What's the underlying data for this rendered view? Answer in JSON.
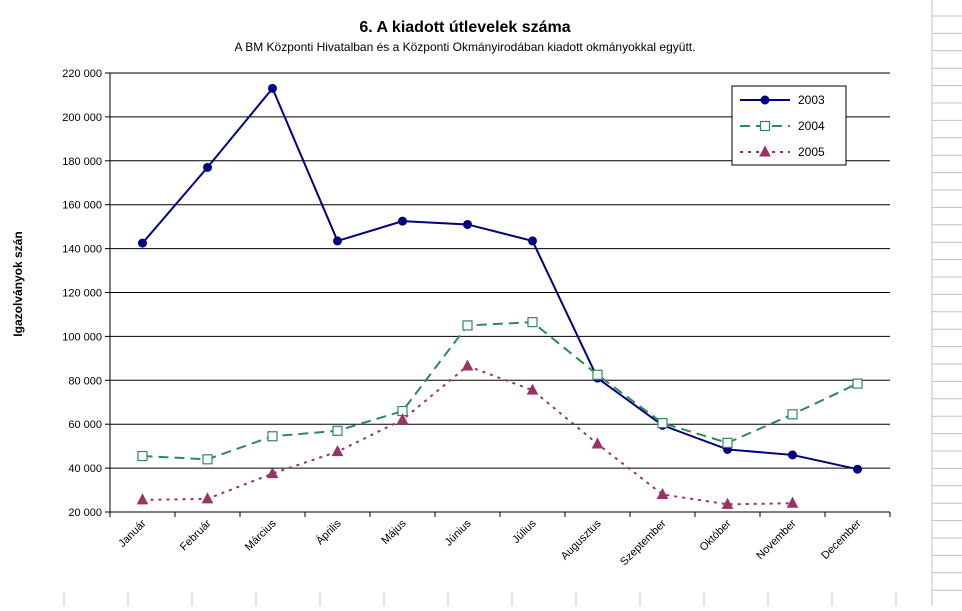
{
  "colors": {
    "series_2003": "#000080",
    "series_2004": "#2e8b57",
    "series_2005": "#993366",
    "gridline": "#000000",
    "sheet_grid": "#c0c0c0"
  },
  "chart_data": {
    "type": "line",
    "title": "6. A  kiadott útlevelek száma",
    "subtitle": "A BM Központi Hivatalban és a Központi Okmányirodában kiadott okmányokkal együtt.",
    "xlabel": "",
    "ylabel": "Igazolványok szán",
    "ylim": [
      20000,
      220000
    ],
    "yticks": [
      20000,
      40000,
      60000,
      80000,
      100000,
      120000,
      140000,
      160000,
      180000,
      200000,
      220000
    ],
    "ytick_labels": [
      "20 000",
      "40 000",
      "60 000",
      "80 000",
      "100 000",
      "120 000",
      "140 000",
      "160 000",
      "180 000",
      "200 000",
      "220 000"
    ],
    "grid": true,
    "legend_position": "top-right",
    "categories": [
      "Január",
      "Február",
      "Március",
      "Április",
      "Május",
      "Június",
      "Július",
      "Augusztus",
      "Szeptember",
      "Október",
      "November",
      "December"
    ],
    "series": [
      {
        "name": "2003",
        "marker": "filled-circle",
        "line": "solid",
        "values": [
          142500,
          177000,
          213000,
          143500,
          152500,
          151000,
          143500,
          81000,
          59500,
          48500,
          46000,
          39500
        ]
      },
      {
        "name": "2004",
        "marker": "open-square",
        "line": "dashed",
        "values": [
          45500,
          44000,
          54500,
          57000,
          66000,
          105000,
          106500,
          82500,
          60500,
          51500,
          64500,
          78500
        ]
      },
      {
        "name": "2005",
        "marker": "filled-triangle",
        "line": "dotted",
        "values": [
          25500,
          26000,
          37500,
          47500,
          62000,
          86500,
          75500,
          51000,
          28000,
          23500,
          24000,
          null
        ]
      }
    ]
  }
}
